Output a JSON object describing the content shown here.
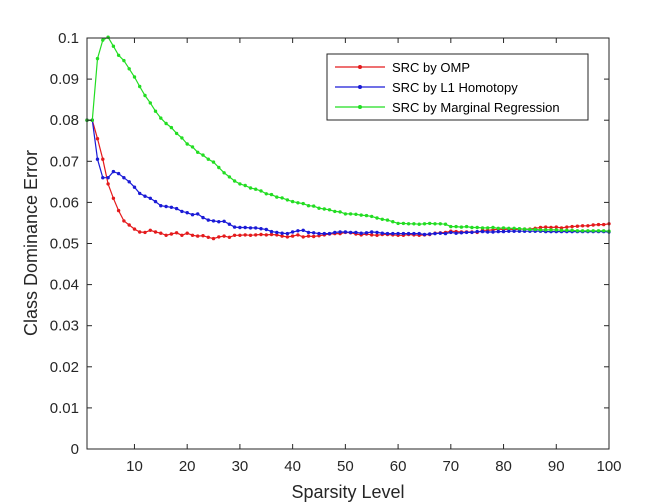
{
  "chart_data": {
    "type": "line",
    "title": "",
    "xlabel": "Sparsity Level",
    "ylabel": "Class Dominance Error",
    "xlim": [
      1,
      100
    ],
    "ylim": [
      0,
      0.1
    ],
    "x_ticks": [
      10,
      20,
      30,
      40,
      50,
      60,
      70,
      80,
      90,
      100
    ],
    "x_tick_labels": [
      "10",
      "20",
      "30",
      "40",
      "50",
      "60",
      "70",
      "80",
      "90",
      "100"
    ],
    "y_ticks": [
      0,
      0.01,
      0.02,
      0.03,
      0.04,
      0.05,
      0.06,
      0.07,
      0.08,
      0.09,
      0.1
    ],
    "y_tick_labels": [
      "0",
      "0.01",
      "0.02",
      "0.03",
      "0.04",
      "0.05",
      "0.06",
      "0.07",
      "0.08",
      "0.09",
      "0.1"
    ],
    "grid": false,
    "legend_position": "top-right",
    "x": [
      1,
      2,
      3,
      4,
      5,
      6,
      7,
      8,
      9,
      10,
      11,
      12,
      13,
      14,
      15,
      16,
      17,
      18,
      19,
      20,
      21,
      22,
      23,
      24,
      25,
      26,
      27,
      28,
      29,
      30,
      31,
      32,
      33,
      34,
      35,
      36,
      37,
      38,
      39,
      40,
      41,
      42,
      43,
      44,
      45,
      46,
      47,
      48,
      49,
      50,
      51,
      52,
      53,
      54,
      55,
      56,
      57,
      58,
      59,
      60,
      61,
      62,
      63,
      64,
      65,
      66,
      67,
      68,
      69,
      70,
      71,
      72,
      73,
      74,
      75,
      76,
      77,
      78,
      79,
      80,
      81,
      82,
      83,
      84,
      85,
      86,
      87,
      88,
      89,
      90,
      91,
      92,
      93,
      94,
      95,
      96,
      97,
      98,
      99,
      100
    ],
    "series": [
      {
        "name": "SRC by OMP",
        "color": "#e41a1c",
        "marker": "dot",
        "values": [
          0.08,
          0.08,
          0.0755,
          0.0705,
          0.0645,
          0.061,
          0.058,
          0.0555,
          0.0545,
          0.0535,
          0.0528,
          0.0527,
          0.0532,
          0.0528,
          0.0525,
          0.052,
          0.0523,
          0.0526,
          0.052,
          0.0525,
          0.052,
          0.0518,
          0.0519,
          0.0515,
          0.0512,
          0.0516,
          0.0518,
          0.0515,
          0.052,
          0.052,
          0.0521,
          0.052,
          0.0521,
          0.0522,
          0.0521,
          0.0522,
          0.0521,
          0.0518,
          0.0516,
          0.0518,
          0.0521,
          0.0516,
          0.0518,
          0.0517,
          0.0519,
          0.0521,
          0.0523,
          0.0524,
          0.0524,
          0.0527,
          0.0526,
          0.0523,
          0.0521,
          0.0523,
          0.0521,
          0.052,
          0.0522,
          0.0522,
          0.0521,
          0.052,
          0.052,
          0.0522,
          0.0521,
          0.052,
          0.0521,
          0.0522,
          0.0525,
          0.0526,
          0.0527,
          0.053,
          0.0529,
          0.0528,
          0.0528,
          0.0528,
          0.0527,
          0.0532,
          0.0532,
          0.0533,
          0.0535,
          0.0534,
          0.0535,
          0.0534,
          0.0535,
          0.0535,
          0.0535,
          0.0537,
          0.0539,
          0.054,
          0.0539,
          0.054,
          0.0538,
          0.054,
          0.0541,
          0.0542,
          0.0543,
          0.0543,
          0.0545,
          0.0546,
          0.0546,
          0.0548
        ]
      },
      {
        "name": "SRC by L1 Homotopy",
        "color": "#1a1ad6",
        "marker": "dot",
        "values": [
          0.08,
          0.08,
          0.0705,
          0.066,
          0.066,
          0.0675,
          0.067,
          0.066,
          0.065,
          0.0637,
          0.0622,
          0.0615,
          0.061,
          0.0602,
          0.0592,
          0.059,
          0.0588,
          0.0585,
          0.0578,
          0.0575,
          0.057,
          0.0572,
          0.0563,
          0.0557,
          0.0555,
          0.0553,
          0.0554,
          0.0547,
          0.054,
          0.0539,
          0.0539,
          0.0538,
          0.0538,
          0.0536,
          0.0534,
          0.0529,
          0.0527,
          0.0525,
          0.0524,
          0.0528,
          0.0531,
          0.0532,
          0.0527,
          0.0526,
          0.0524,
          0.0524,
          0.0524,
          0.0527,
          0.0528,
          0.0528,
          0.0527,
          0.0527,
          0.0525,
          0.0526,
          0.0528,
          0.0527,
          0.0525,
          0.0524,
          0.0524,
          0.0524,
          0.0524,
          0.0524,
          0.0524,
          0.0524,
          0.0522,
          0.0523,
          0.0524,
          0.0525,
          0.0524,
          0.0527,
          0.0525,
          0.0526,
          0.0527,
          0.0527,
          0.0529,
          0.0529,
          0.0528,
          0.0528,
          0.0529,
          0.0529,
          0.053,
          0.053,
          0.053,
          0.053,
          0.053,
          0.053,
          0.053,
          0.0529,
          0.0529,
          0.0529,
          0.0529,
          0.0529,
          0.0529,
          0.0529,
          0.0529,
          0.0529,
          0.0529,
          0.0529,
          0.0529,
          0.0528
        ]
      },
      {
        "name": "SRC by Marginal Regression",
        "color": "#22dd22",
        "marker": "dot",
        "values": [
          0.08,
          0.08,
          0.095,
          0.0995,
          0.1002,
          0.098,
          0.0958,
          0.0945,
          0.0925,
          0.0905,
          0.0882,
          0.086,
          0.0842,
          0.0822,
          0.0805,
          0.0792,
          0.0782,
          0.0768,
          0.0757,
          0.0742,
          0.0735,
          0.0722,
          0.0715,
          0.0705,
          0.0698,
          0.0685,
          0.0672,
          0.0662,
          0.0652,
          0.0645,
          0.0641,
          0.0635,
          0.0632,
          0.0628,
          0.0621,
          0.0619,
          0.0613,
          0.0611,
          0.0606,
          0.0602,
          0.0599,
          0.0597,
          0.0592,
          0.0591,
          0.0586,
          0.0584,
          0.0582,
          0.0578,
          0.0577,
          0.0572,
          0.0572,
          0.0571,
          0.0569,
          0.0568,
          0.0566,
          0.0562,
          0.0559,
          0.0557,
          0.0553,
          0.0549,
          0.0549,
          0.0548,
          0.0548,
          0.0547,
          0.0548,
          0.0549,
          0.0548,
          0.0548,
          0.0547,
          0.0541,
          0.0541,
          0.054,
          0.0541,
          0.0539,
          0.0539,
          0.0538,
          0.0538,
          0.0539,
          0.0537,
          0.0538,
          0.0537,
          0.0537,
          0.0536,
          0.0535,
          0.0534,
          0.0534,
          0.0533,
          0.0533,
          0.0533,
          0.0533,
          0.0532,
          0.0532,
          0.0532,
          0.0531,
          0.0531,
          0.0531,
          0.0531,
          0.0531,
          0.0531,
          0.053
        ]
      }
    ]
  }
}
